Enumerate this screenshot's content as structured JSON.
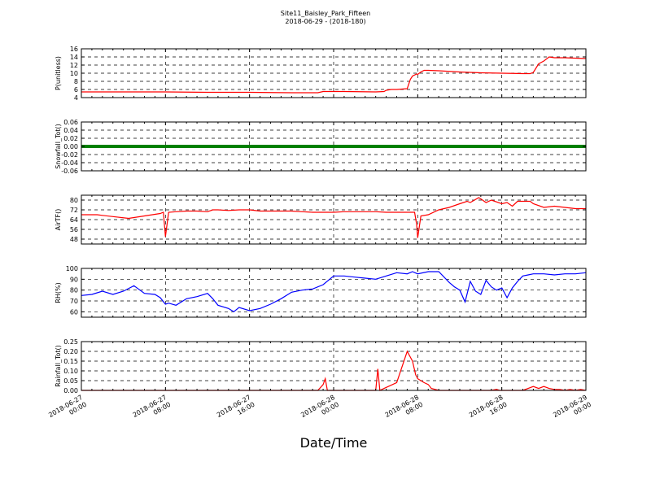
{
  "figure": {
    "title": "Site11_Baisley_Park_Fifteen",
    "subtitle": "2018-06-29 - (2018-180)",
    "xlabel": "Date/Time",
    "x_ticks": [
      {
        "t": 0,
        "label": [
          "2018-06-27",
          "00:00"
        ]
      },
      {
        "t": 8,
        "label": [
          "2018-06-27",
          "08:00"
        ]
      },
      {
        "t": 16,
        "label": [
          "2018-06-27",
          "16:00"
        ]
      },
      {
        "t": 24,
        "label": [
          "2018-06-28",
          "00:00"
        ]
      },
      {
        "t": 32,
        "label": [
          "2018-06-28",
          "08:00"
        ]
      },
      {
        "t": 40,
        "label": [
          "2018-06-28",
          "16:00"
        ]
      },
      {
        "t": 48,
        "label": [
          "2018-06-29",
          "00:00"
        ]
      }
    ],
    "xlim": [
      0,
      48
    ]
  },
  "chart_data": [
    {
      "type": "line",
      "ylabel": "P(unitless)",
      "ylim": [
        4,
        16
      ],
      "yticks": [
        4,
        6,
        8,
        10,
        12,
        14,
        16
      ],
      "decimals": 0,
      "grid": true,
      "series": [
        {
          "color": "#ff0000",
          "x": [
            0,
            4,
            8,
            12,
            16,
            20,
            22.5,
            23,
            25,
            28,
            28.8,
            29,
            29.5,
            30,
            31,
            31.3,
            31.5,
            31.9,
            32,
            32.3,
            32.6,
            33,
            34,
            36,
            38,
            40,
            42,
            42.7,
            43,
            43.5,
            44,
            44.5,
            45,
            46,
            47,
            48
          ],
          "y": [
            5.4,
            5.4,
            5.4,
            5.3,
            5.3,
            5.2,
            5.2,
            5.5,
            5.5,
            5.4,
            5.5,
            5.8,
            6.0,
            6.0,
            6.2,
            8.5,
            9.3,
            9.8,
            9.7,
            10.3,
            10.7,
            10.7,
            10.6,
            10.3,
            10.1,
            10.0,
            9.9,
            9.9,
            10.2,
            12.3,
            13.0,
            14.0,
            13.8,
            13.8,
            13.7,
            13.6
          ]
        }
      ]
    },
    {
      "type": "line",
      "ylabel": "Snowfall_Tot()",
      "ylim": [
        -0.06,
        0.06
      ],
      "yticks": [
        -0.06,
        -0.04,
        -0.02,
        0.0,
        0.02,
        0.04,
        0.06
      ],
      "decimals": 2,
      "grid": true,
      "series": [
        {
          "color": "#008000",
          "x": [
            0,
            48
          ],
          "y": [
            0,
            0
          ]
        }
      ]
    },
    {
      "type": "line",
      "ylabel": "AirTF()",
      "ylim": [
        44,
        84
      ],
      "yticks": [
        48,
        56,
        64,
        72,
        80
      ],
      "decimals": 0,
      "grid": true,
      "series": [
        {
          "color": "#ff0000",
          "x": [
            0,
            1.5,
            2,
            3,
            4.5,
            6,
            7.5,
            7.8,
            8,
            8.3,
            9,
            10,
            11,
            12,
            12.5,
            13,
            14,
            15,
            16,
            17,
            18,
            19,
            20,
            21,
            22,
            23,
            24,
            25,
            26,
            27,
            28,
            29,
            30,
            31,
            31.7,
            31.9,
            32,
            32.3,
            33,
            34,
            35,
            36,
            36.7,
            37,
            37.8,
            38,
            38.5,
            39,
            40,
            40.5,
            41,
            41.5,
            42,
            42.7,
            43,
            44,
            45,
            46,
            47,
            48
          ],
          "y": [
            68,
            68,
            67.5,
            66.5,
            65,
            67,
            69,
            70,
            50,
            70,
            70.5,
            71,
            71,
            70.5,
            72,
            72,
            71.5,
            72,
            72,
            71,
            71,
            71,
            71,
            70.5,
            70,
            70,
            70,
            70.5,
            70.5,
            70.5,
            70.5,
            70,
            70,
            70,
            70,
            60,
            49,
            67,
            68,
            72,
            74,
            77,
            79,
            78,
            82,
            81,
            78,
            80,
            77,
            78,
            75,
            79,
            79,
            79,
            77,
            74,
            75,
            74,
            73,
            73
          ]
        }
      ]
    },
    {
      "type": "line",
      "ylabel": "RH(%)",
      "ylim": [
        55,
        100
      ],
      "yticks": [
        60,
        70,
        80,
        90,
        100
      ],
      "decimals": 0,
      "grid": true,
      "series": [
        {
          "color": "#0000ff",
          "x": [
            0,
            1,
            2,
            3,
            4,
            5,
            6,
            7,
            7.5,
            8,
            8.3,
            9,
            10,
            11,
            12,
            12.5,
            13,
            14,
            14.5,
            15,
            16,
            17,
            18,
            19,
            20,
            21,
            22,
            23,
            24,
            25,
            26,
            27,
            28,
            29,
            30,
            31,
            31.5,
            32,
            33,
            34,
            35,
            35.5,
            36,
            36.5,
            37,
            37.5,
            38,
            38.5,
            39,
            39.5,
            40,
            40.5,
            41,
            41.5,
            42,
            42.5,
            43,
            43.5,
            44,
            45,
            46,
            47,
            48
          ],
          "y": [
            75,
            76,
            79,
            76,
            79,
            84,
            77,
            76,
            73,
            67,
            68,
            66,
            72,
            74,
            77,
            72,
            66,
            63,
            60,
            64,
            61,
            63,
            67,
            72,
            78,
            80,
            81,
            85,
            93,
            93,
            92,
            91,
            90,
            93,
            96,
            95,
            97,
            95,
            97,
            97,
            87,
            83,
            80,
            69,
            88,
            79,
            76,
            89,
            83,
            80,
            82,
            73,
            82,
            88,
            93,
            94,
            95,
            95,
            95,
            94,
            95,
            95,
            96
          ]
        }
      ]
    },
    {
      "type": "line",
      "ylabel": "Rainfall_Tot()",
      "ylim": [
        0,
        0.25
      ],
      "yticks": [
        0.0,
        0.05,
        0.1,
        0.15,
        0.2,
        0.25
      ],
      "decimals": 2,
      "grid": true,
      "series": [
        {
          "color": "#ff0000",
          "x": [
            0,
            22,
            22.5,
            23,
            23.2,
            23.4,
            28,
            28.2,
            28.4,
            28.8,
            30,
            31,
            31.5,
            31.8,
            32,
            32.3,
            32.6,
            33,
            33.3,
            34,
            35,
            36,
            37,
            38,
            39,
            39.5,
            39.8,
            40.3,
            41,
            41.5,
            42,
            42.5,
            43,
            43.5,
            44,
            44.5,
            45,
            45.5,
            46,
            46.5,
            47,
            47.5,
            48
          ],
          "y": [
            0,
            0,
            0,
            0.03,
            0.06,
            0,
            0,
            0.11,
            0,
            0.01,
            0.04,
            0.2,
            0.15,
            0.08,
            0.06,
            0.05,
            0.04,
            0.03,
            0.01,
            0,
            0,
            0,
            0,
            0,
            0,
            0.005,
            0,
            0,
            0,
            0,
            0,
            0.01,
            0.02,
            0.01,
            0.02,
            0.01,
            0.005,
            0.005,
            0,
            0.005,
            0,
            0.005,
            0
          ]
        }
      ]
    }
  ]
}
